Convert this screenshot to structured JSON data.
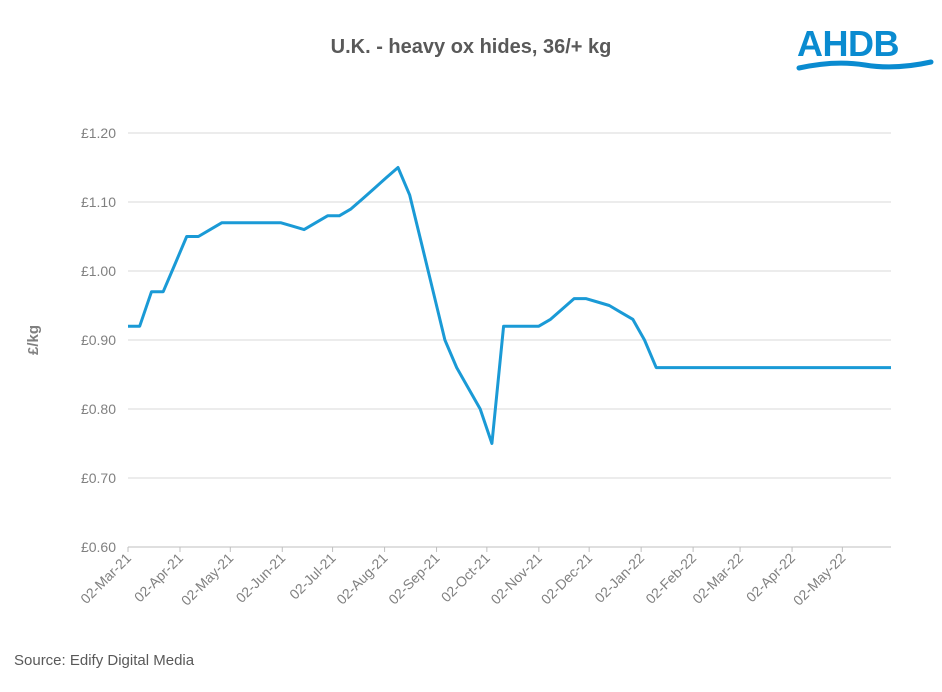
{
  "title": "U.K. - heavy ox hides, 36/+ kg",
  "logo": {
    "text": "AHDB",
    "color": "#0a8bd0"
  },
  "source": "Source: Edify Digital Media",
  "chart_data": {
    "type": "line",
    "title": "U.K. - heavy ox hides, 36/+ kg",
    "xlabel": "",
    "ylabel": "£/kg",
    "ylim": [
      0.6,
      1.2
    ],
    "y_ticks": [
      0.6,
      0.7,
      0.8,
      0.9,
      1.0,
      1.1,
      1.2
    ],
    "y_tick_labels": [
      "£0.60",
      "£0.70",
      "£0.80",
      "£0.90",
      "£1.00",
      "£1.10",
      "£1.20"
    ],
    "xlim": [
      "2021-03-02",
      "2022-05-31"
    ],
    "x_ticks": [
      "2021-03-02",
      "2021-04-02",
      "2021-05-02",
      "2021-06-02",
      "2021-07-02",
      "2021-08-02",
      "2021-09-02",
      "2021-10-02",
      "2021-11-02",
      "2021-12-02",
      "2022-01-02",
      "2022-02-02",
      "2022-03-02",
      "2022-04-02",
      "2022-05-02"
    ],
    "x_tick_labels": [
      "02-Mar-21",
      "02-Apr-21",
      "02-May-21",
      "02-Jun-21",
      "02-Jul-21",
      "02-Aug-21",
      "02-Sep-21",
      "02-Oct-21",
      "02-Nov-21",
      "02-Dec-21",
      "02-Jan-22",
      "02-Feb-22",
      "02-Mar-22",
      "02-Apr-22",
      "02-May-22"
    ],
    "grid": true,
    "line_color": "#1a9ad6",
    "series": [
      {
        "x": [
          "2021-03-02",
          "2021-03-09",
          "2021-03-16",
          "2021-03-23",
          "2021-03-30",
          "2021-04-06",
          "2021-04-13",
          "2021-04-20",
          "2021-04-27",
          "2021-05-04",
          "2021-05-11",
          "2021-05-18",
          "2021-05-25",
          "2021-06-01",
          "2021-06-08",
          "2021-06-15",
          "2021-06-22",
          "2021-06-29",
          "2021-07-06",
          "2021-07-13",
          "2021-07-20",
          "2021-07-27",
          "2021-08-03",
          "2021-08-10",
          "2021-08-17",
          "2021-08-24",
          "2021-08-31",
          "2021-09-07",
          "2021-09-14",
          "2021-09-21",
          "2021-09-28",
          "2021-10-05",
          "2021-10-12",
          "2021-10-19",
          "2021-10-26",
          "2021-11-02",
          "2021-11-09",
          "2021-11-16",
          "2021-11-23",
          "2021-11-30",
          "2021-12-07",
          "2021-12-14",
          "2021-12-21",
          "2021-12-28",
          "2022-01-04",
          "2022-01-11",
          "2022-01-18",
          "2022-01-25",
          "2022-02-01",
          "2022-02-08",
          "2022-02-15",
          "2022-02-22",
          "2022-03-01",
          "2022-03-08",
          "2022-03-15",
          "2022-03-22",
          "2022-03-29",
          "2022-04-05",
          "2022-04-12",
          "2022-04-19",
          "2022-04-26",
          "2022-05-03",
          "2022-05-10",
          "2022-05-17",
          "2022-05-24",
          "2022-05-31"
        ],
        "values": [
          0.92,
          0.92,
          0.97,
          0.97,
          1.01,
          1.05,
          1.05,
          1.06,
          1.07,
          1.07,
          1.07,
          1.07,
          1.07,
          1.07,
          1.065,
          1.06,
          1.07,
          1.08,
          1.08,
          1.09,
          1.105,
          1.12,
          1.135,
          1.15,
          1.11,
          1.04,
          0.97,
          0.9,
          0.86,
          0.83,
          0.8,
          0.75,
          0.92,
          0.92,
          0.92,
          0.92,
          0.93,
          0.945,
          0.96,
          0.96,
          0.955,
          0.95,
          0.94,
          0.93,
          0.9,
          0.86,
          0.86,
          0.86,
          0.86,
          0.86,
          0.86,
          0.86,
          0.86,
          0.86,
          0.86,
          0.86,
          0.86,
          0.86,
          0.86,
          0.86,
          0.86,
          0.86,
          0.86,
          0.86,
          0.86,
          0.86
        ]
      }
    ]
  }
}
